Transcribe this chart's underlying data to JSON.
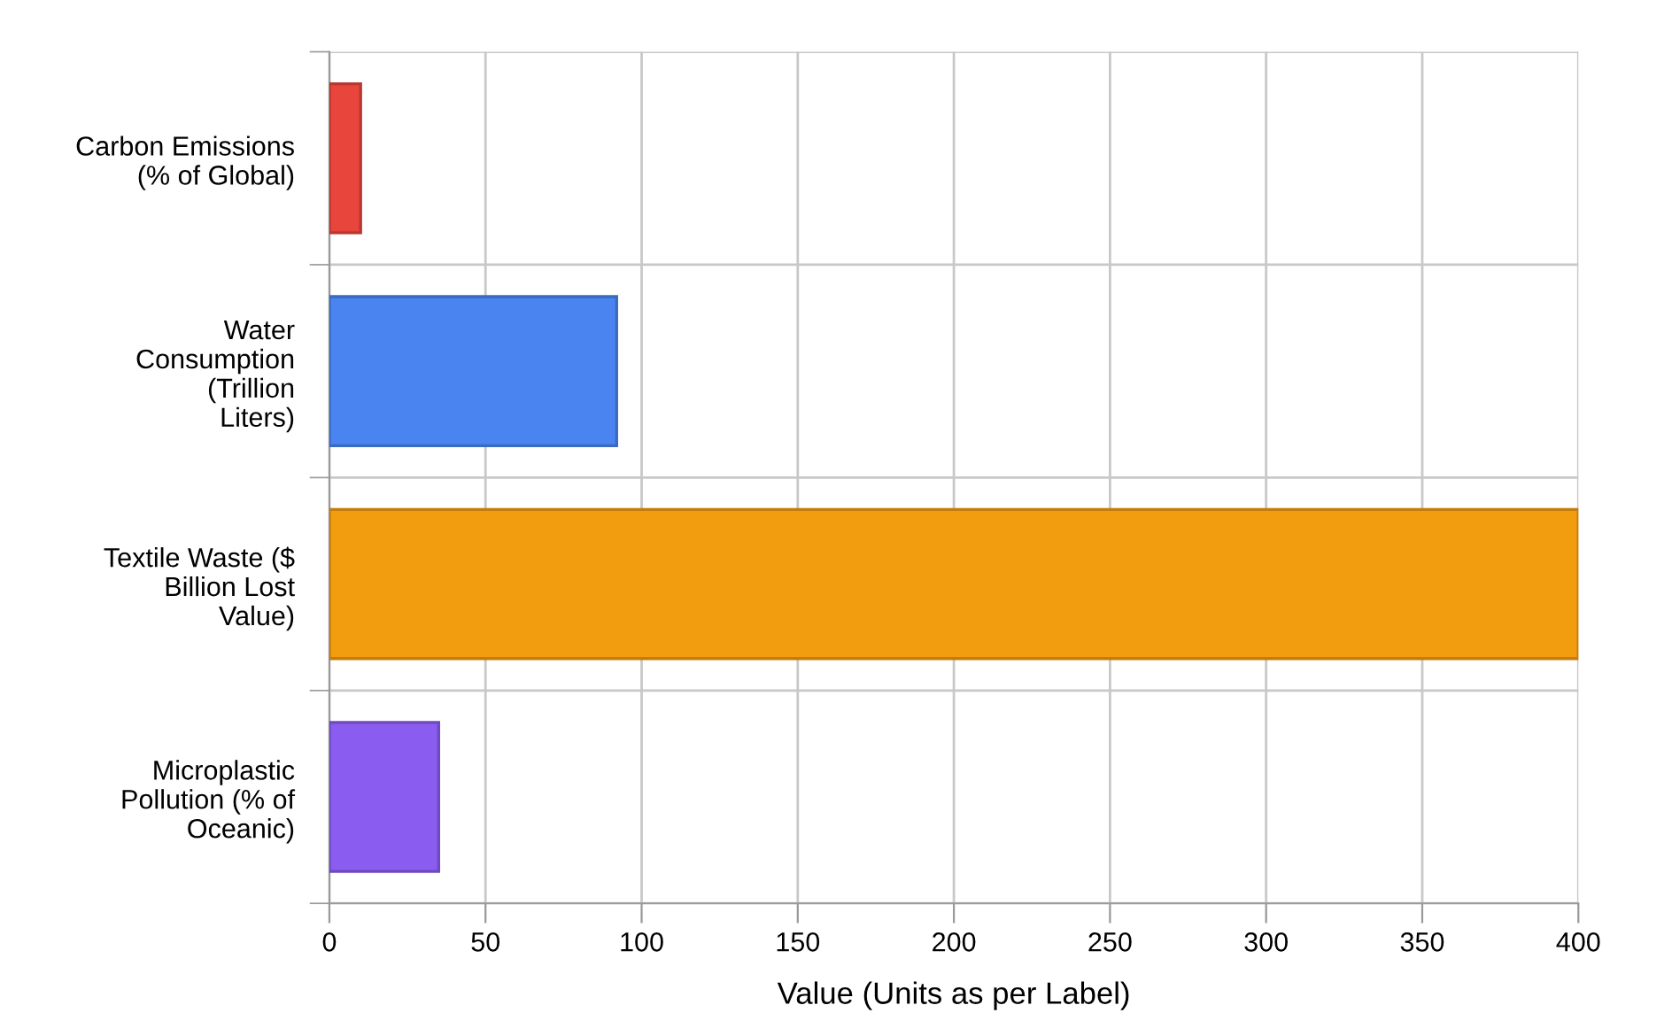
{
  "chart_data": {
    "type": "bar",
    "orientation": "horizontal",
    "xlabel": "Value (Units as per Label)",
    "categories": [
      "Carbon Emissions\n(% of Global)",
      "Water\nConsumption\n(Trillion\nLiters)",
      "Textile Waste ($\nBillion Lost\nValue)",
      "Microplastic\nPollution (% of\nOceanic)"
    ],
    "values": [
      10,
      92,
      400,
      35
    ],
    "colors": [
      "#e8453c",
      "#4a84f0",
      "#f29c0f",
      "#8a5cf0"
    ],
    "xlim": [
      0,
      400
    ],
    "xticks": [
      0,
      50,
      100,
      150,
      200,
      250,
      300,
      350,
      400
    ],
    "grid": true,
    "legend": false
  }
}
